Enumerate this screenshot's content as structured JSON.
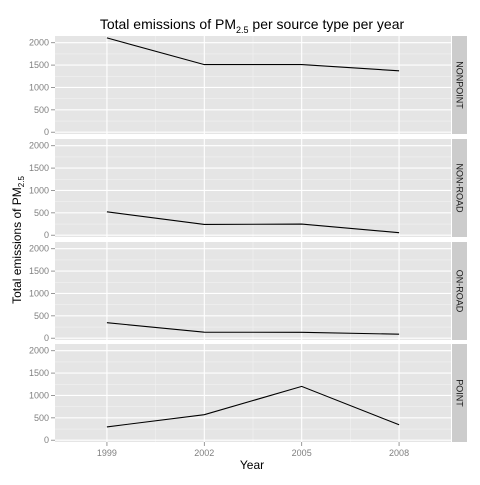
{
  "chart_data": {
    "type": "line",
    "title": "Total emissions of PM",
    "title_subscript": "2.5",
    "title_suffix": " per source type per year",
    "xlabel": "Year",
    "ylabel": "Total emissions of PM",
    "ylabel_subscript": "2.5",
    "x": [
      1999,
      2002,
      2005,
      2008
    ],
    "x_ticks": [
      "1999",
      "2002",
      "2005",
      "2008"
    ],
    "y_ticks": [
      "0",
      "500",
      "1000",
      "1500",
      "2000"
    ],
    "ylim": [
      -40,
      2150
    ],
    "xlim": [
      1997.4,
      2009.6
    ],
    "grid": true,
    "facets": [
      {
        "label": "NONPOINT",
        "values": [
          2108,
          1510,
          1510,
          1373
        ]
      },
      {
        "label": "NON-ROAD",
        "values": [
          523,
          241,
          249,
          56
        ]
      },
      {
        "label": "ON-ROAD",
        "values": [
          347,
          134,
          131,
          89
        ]
      },
      {
        "label": "POINT",
        "values": [
          297,
          570,
          1203,
          345
        ]
      }
    ],
    "colors": {
      "panel_bg": "#e5e5e5",
      "grid_major": "#ffffff",
      "grid_minor": "#f2f2f2",
      "strip_bg": "#cccccc",
      "line": "#000000",
      "tick_text": "#7f7f7f"
    }
  }
}
